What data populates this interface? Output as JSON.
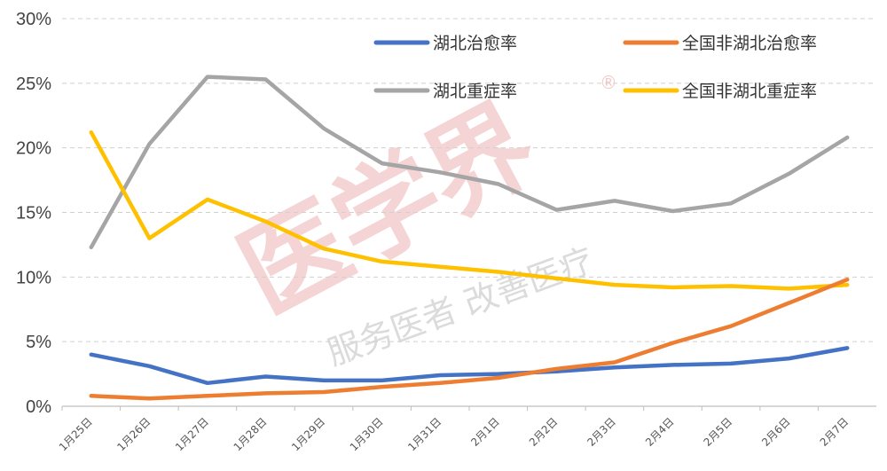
{
  "watermark": {
    "main": "医学界",
    "sub": "服务医者 改善医疗",
    "reg": "®"
  },
  "chart_data": {
    "type": "line",
    "ylim": [
      0,
      30
    ],
    "yticks": [
      0,
      5,
      10,
      15,
      20,
      25,
      30
    ],
    "ytick_labels": [
      "0%",
      "5%",
      "10%",
      "15%",
      "20%",
      "25%",
      "30%"
    ],
    "grid": true,
    "legend_position": "top-right",
    "categories": [
      "1月25日",
      "1月26日",
      "1月27日",
      "1月28日",
      "1月29日",
      "1月30日",
      "1月31日",
      "2月1日",
      "2月2日",
      "2月3日",
      "2月4日",
      "2月5日",
      "2月6日",
      "2月7日"
    ],
    "series": [
      {
        "name": "湖北治愈率",
        "color": "#4472C4",
        "values": [
          4.0,
          3.1,
          1.8,
          2.3,
          2.0,
          2.0,
          2.4,
          2.5,
          2.7,
          3.0,
          3.2,
          3.3,
          3.7,
          4.5
        ]
      },
      {
        "name": "全国非湖北治愈率",
        "color": "#ED7D31",
        "values": [
          0.8,
          0.6,
          0.8,
          1.0,
          1.1,
          1.5,
          1.8,
          2.2,
          2.9,
          3.4,
          4.9,
          6.2,
          8.0,
          9.8
        ]
      },
      {
        "name": "湖北重症率",
        "color": "#A5A5A5",
        "values": [
          12.3,
          20.3,
          25.5,
          25.3,
          21.5,
          18.8,
          18.1,
          17.2,
          15.2,
          15.9,
          15.1,
          15.7,
          18.0,
          20.8
        ]
      },
      {
        "name": "全国非湖北重症率",
        "color": "#FFC000",
        "values": [
          21.2,
          13.0,
          16.0,
          14.3,
          12.2,
          11.2,
          10.8,
          10.4,
          9.9,
          9.4,
          9.2,
          9.3,
          9.1,
          9.4
        ]
      }
    ]
  }
}
